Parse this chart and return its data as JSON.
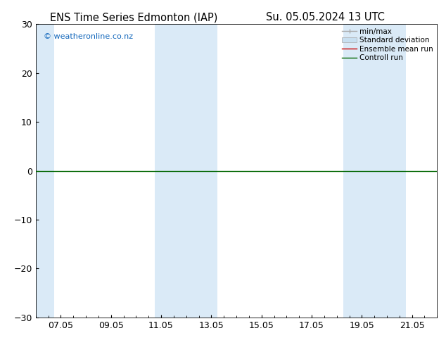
{
  "title_left": "ENS Time Series Edmonton (IAP)",
  "title_right": "Su. 05.05.2024 13 UTC",
  "watermark": "© weatheronline.co.nz",
  "ylim": [
    -30,
    30
  ],
  "yticks": [
    -30,
    -20,
    -10,
    0,
    10,
    20,
    30
  ],
  "xlim_start": 0,
  "xlim_end": 16,
  "xtick_labels": [
    "07.05",
    "09.05",
    "11.05",
    "13.05",
    "15.05",
    "17.05",
    "19.05",
    "21.05"
  ],
  "xtick_positions": [
    1,
    3,
    5,
    7,
    9,
    11,
    13,
    15
  ],
  "shaded_bands": [
    [
      0,
      0.75
    ],
    [
      4.75,
      6.0
    ],
    [
      6.0,
      7.25
    ],
    [
      12.25,
      13.5
    ],
    [
      13.5,
      14.75
    ]
  ],
  "shade_color": "#daeaf7",
  "background_color": "#ffffff",
  "plot_bg_color": "#ffffff",
  "control_run_color": "#006600",
  "ensemble_mean_color": "#cc0000",
  "legend_min_max_color": "#aaaaaa",
  "legend_std_color": "#c8dff0",
  "title_fontsize": 10.5,
  "tick_fontsize": 9,
  "watermark_fontsize": 8,
  "legend_fontsize": 7.5
}
